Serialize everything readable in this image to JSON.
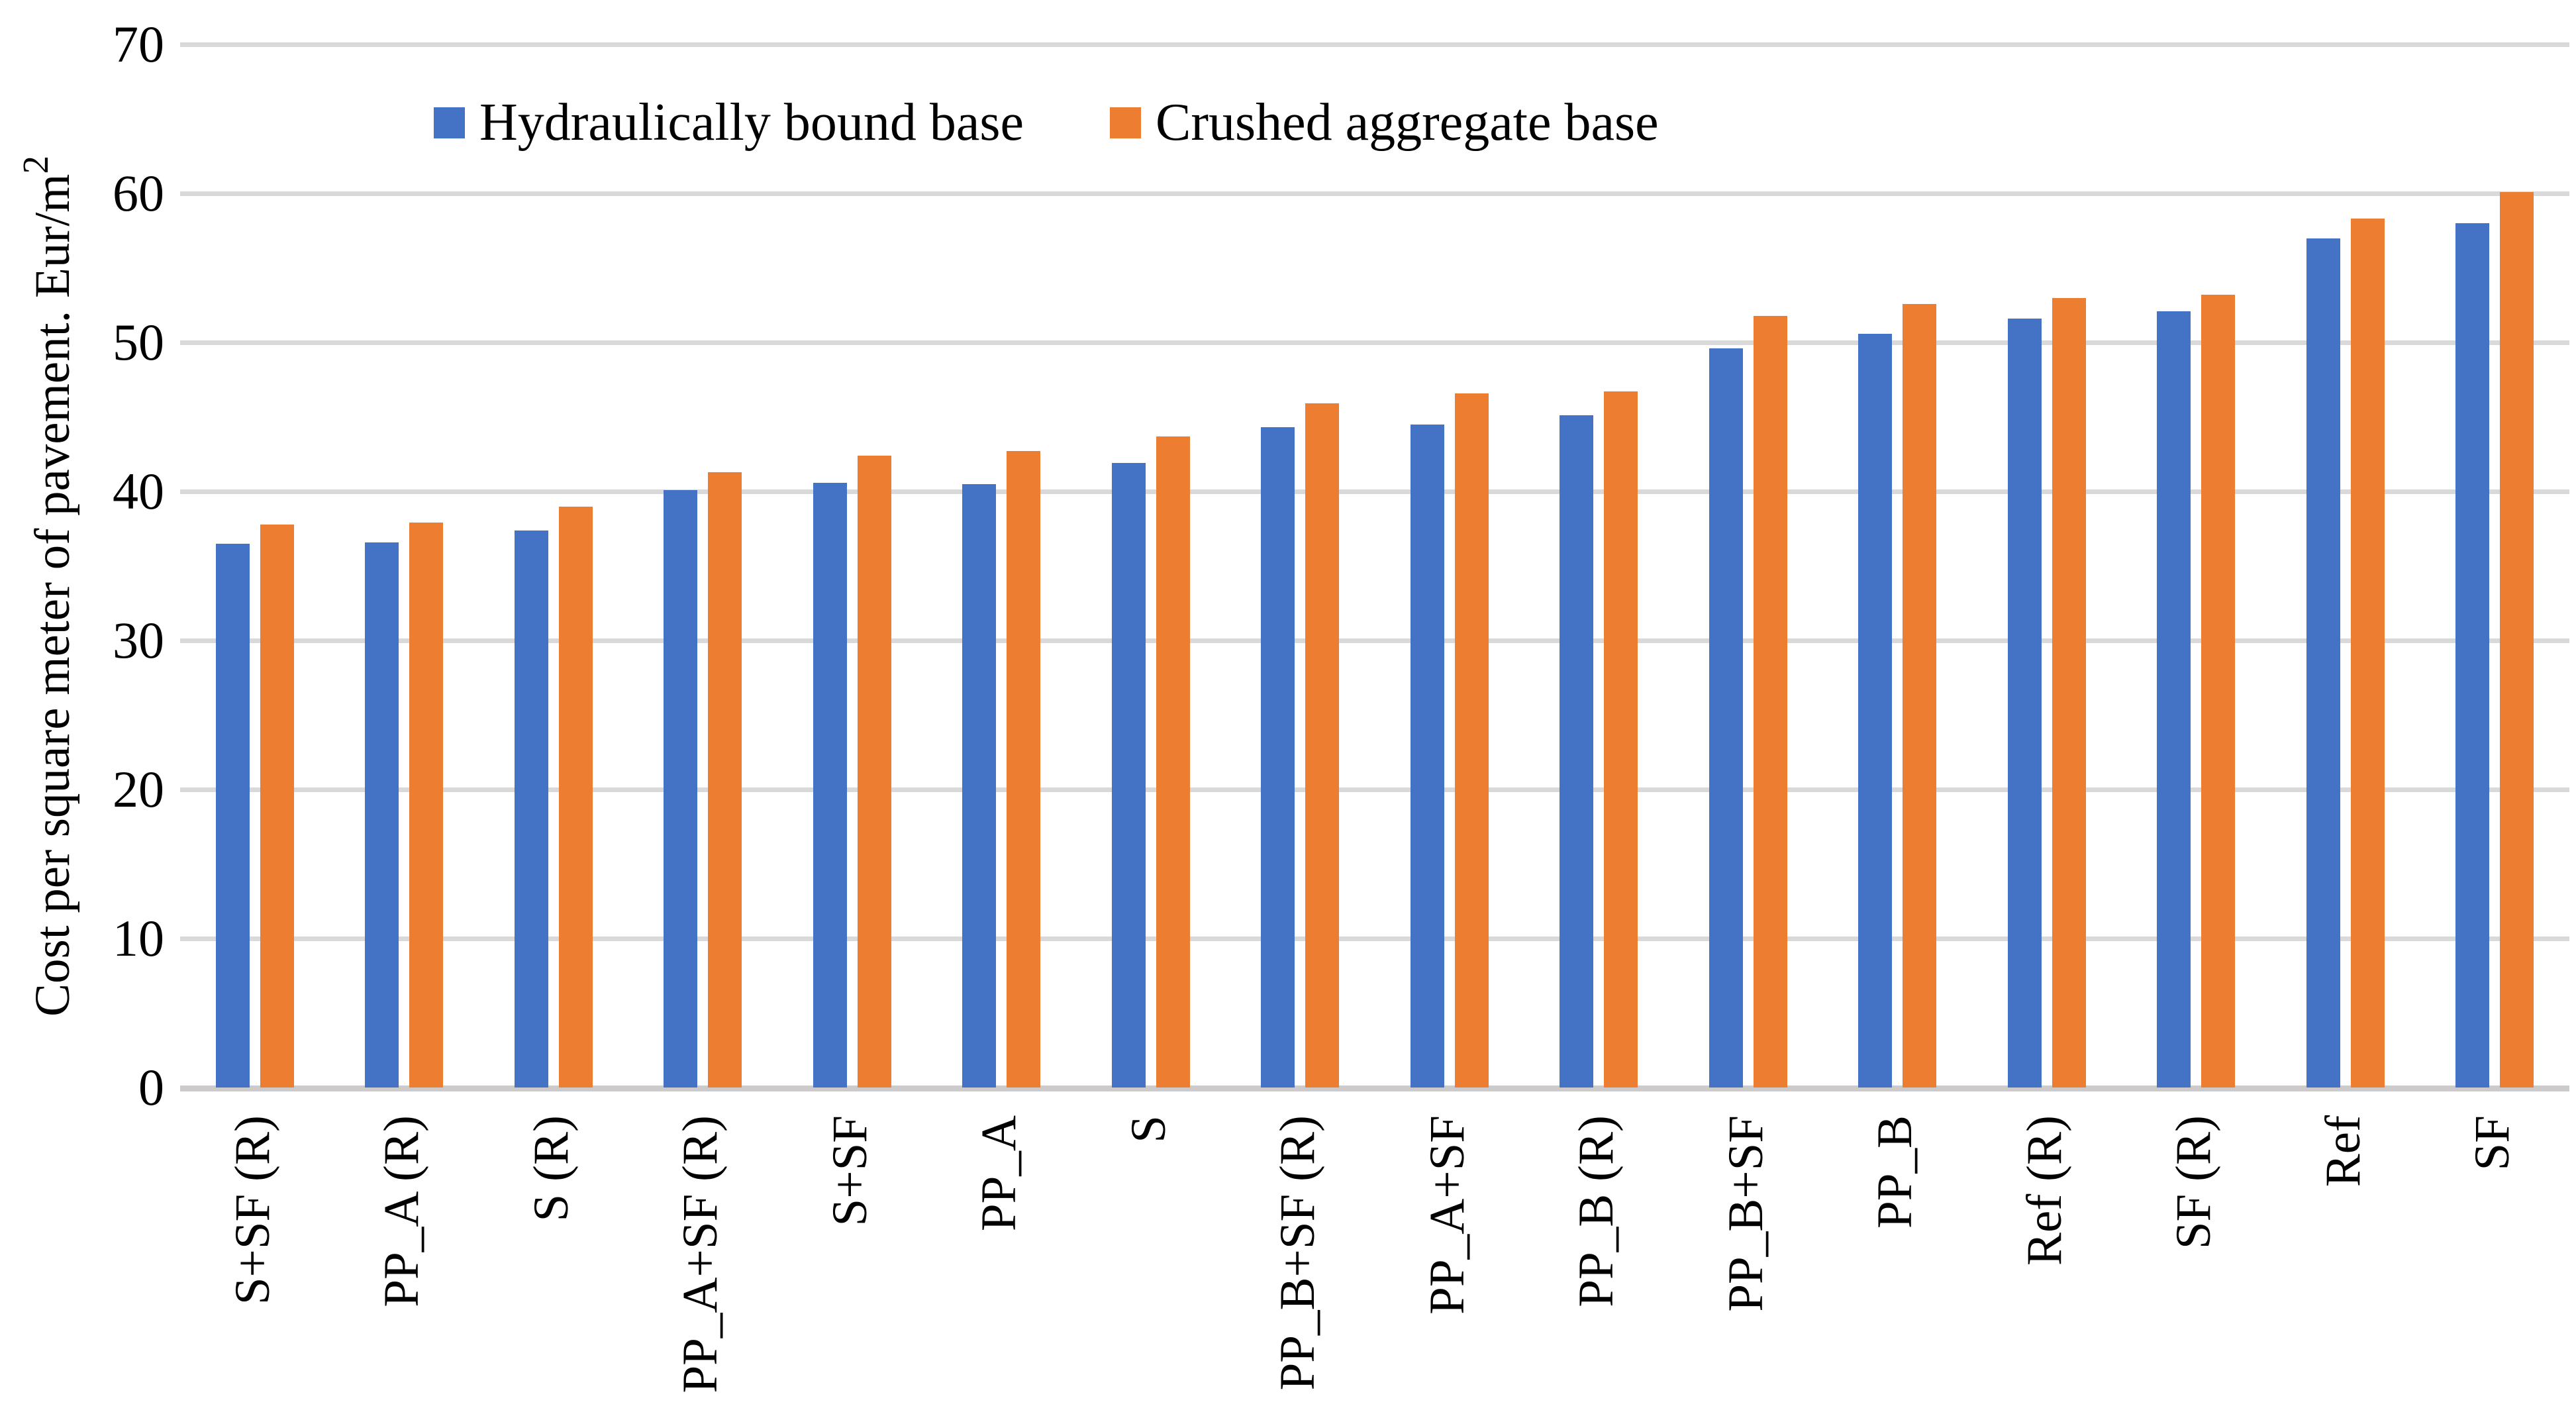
{
  "chart_data": {
    "type": "bar",
    "title": "",
    "xlabel": "",
    "ylabel": "Cost per square meter of pavement. Eur/m²",
    "ylim": [
      0,
      70
    ],
    "yticks": [
      0,
      10,
      20,
      30,
      40,
      50,
      60,
      70
    ],
    "grid": true,
    "legend_position": "top-inside",
    "categories": [
      "S+SF (R)",
      "PP_A (R)",
      "S (R)",
      "PP_A+SF (R)",
      "S+SF",
      "PP_A",
      "S",
      "PP_B+SF (R)",
      "PP_A+SF",
      "PP_B (R)",
      "PP_B+SF",
      "PP_B",
      "Ref (R)",
      "SF (R)",
      "Ref",
      "SF"
    ],
    "series": [
      {
        "name": "Hydraulically bound base",
        "color": "#4472C4",
        "values": [
          36.5,
          36.6,
          37.4,
          40.1,
          40.6,
          40.5,
          41.9,
          44.3,
          44.5,
          45.1,
          49.6,
          50.6,
          51.6,
          52.1,
          57.0,
          58.0
        ]
      },
      {
        "name": "Crushed aggregate base",
        "color": "#ED7D31",
        "values": [
          37.8,
          37.9,
          39.0,
          41.3,
          42.4,
          42.7,
          43.7,
          45.9,
          46.6,
          46.7,
          51.8,
          52.6,
          53.0,
          53.2,
          58.3,
          60.1
        ]
      }
    ]
  },
  "colors": {
    "gridline": "#D9D9D9",
    "axis_line": "#CCCACA",
    "text": "#000000",
    "background": "#FFFFFF"
  }
}
